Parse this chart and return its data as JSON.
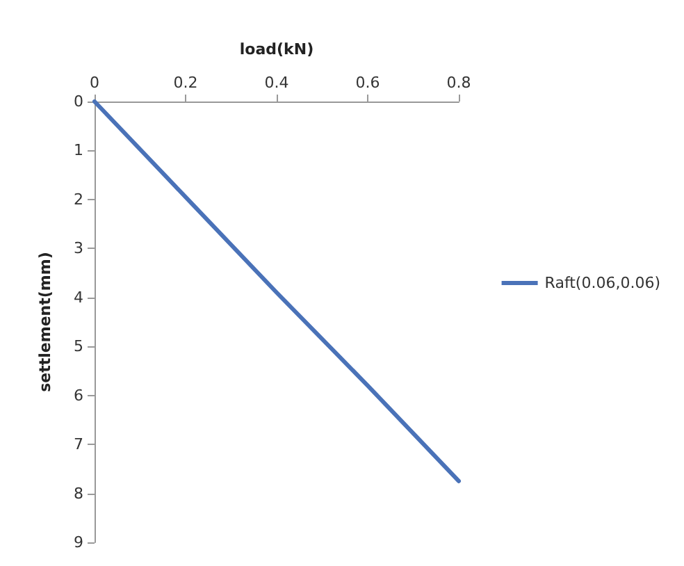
{
  "chart_data": {
    "type": "line",
    "xlabel": "load(kN)",
    "ylabel": "settlement(mm)",
    "x": [
      0,
      0.2,
      0.4,
      0.6,
      0.8
    ],
    "series": [
      {
        "name": "Raft(0.06,0.06)",
        "color": "#4a72b8",
        "values": [
          0,
          1.95,
          3.9,
          5.8,
          7.75
        ]
      }
    ],
    "xlim": [
      0,
      0.8
    ],
    "xticks": [
      0,
      0.2,
      0.4,
      0.6,
      0.8
    ],
    "ylim": [
      9,
      0
    ],
    "yticks": [
      0,
      1,
      2,
      3,
      4,
      5,
      6,
      7,
      8,
      9
    ],
    "legend": "right",
    "grid": false,
    "marker": "none",
    "line_style": "solid"
  }
}
